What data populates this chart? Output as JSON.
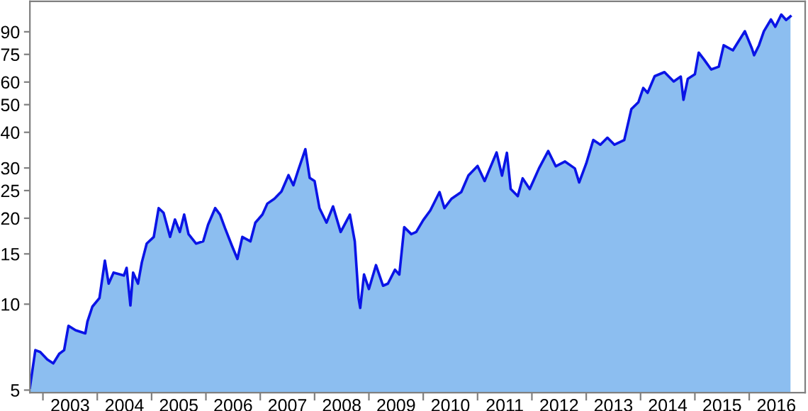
{
  "chart_data": {
    "type": "area",
    "log": "y",
    "grid": false,
    "legend": false,
    "xlim": [
      2002.76,
      2017.03
    ],
    "ylim": [
      4.9,
      115
    ],
    "xticks": [
      {
        "value": 2003,
        "label": null
      },
      {
        "value": 2003.5,
        "label": "2003"
      },
      {
        "value": 2004,
        "label": null
      },
      {
        "value": 2004.5,
        "label": "2004"
      },
      {
        "value": 2005,
        "label": null
      },
      {
        "value": 2005.5,
        "label": "2005"
      },
      {
        "value": 2006,
        "label": null
      },
      {
        "value": 2006.5,
        "label": "2006"
      },
      {
        "value": 2007,
        "label": null
      },
      {
        "value": 2007.5,
        "label": "2007"
      },
      {
        "value": 2008,
        "label": null
      },
      {
        "value": 2008.5,
        "label": "2008"
      },
      {
        "value": 2009,
        "label": null
      },
      {
        "value": 2009.5,
        "label": "2009"
      },
      {
        "value": 2010,
        "label": null
      },
      {
        "value": 2010.5,
        "label": "2010"
      },
      {
        "value": 2011,
        "label": null
      },
      {
        "value": 2011.5,
        "label": "2011"
      },
      {
        "value": 2012,
        "label": null
      },
      {
        "value": 2012.5,
        "label": "2012"
      },
      {
        "value": 2013,
        "label": null
      },
      {
        "value": 2013.5,
        "label": "2013"
      },
      {
        "value": 2014,
        "label": null
      },
      {
        "value": 2014.5,
        "label": "2014"
      },
      {
        "value": 2015,
        "label": null
      },
      {
        "value": 2015.5,
        "label": "2015"
      },
      {
        "value": 2016,
        "label": null
      },
      {
        "value": 2016.5,
        "label": "2016"
      }
    ],
    "yticks": [
      5,
      10,
      15,
      20,
      25,
      30,
      40,
      50,
      60,
      75,
      90
    ],
    "series": [
      {
        "color": "#8cbef0",
        "x": [
          2002.76,
          2002.86,
          2002.95,
          2003.08,
          2003.19,
          2003.3,
          2003.39,
          2003.47,
          2003.6,
          2003.78,
          2003.82,
          2003.91,
          2004.04,
          2004.14,
          2004.21,
          2004.3,
          2004.49,
          2004.54,
          2004.61,
          2004.66,
          2004.75,
          2004.82,
          2004.91,
          2005.04,
          2005.13,
          2005.22,
          2005.34,
          2005.43,
          2005.52,
          2005.6,
          2005.68,
          2005.82,
          2005.95,
          2006.04,
          2006.17,
          2006.26,
          2006.35,
          2006.48,
          2006.58,
          2006.67,
          2006.82,
          2006.91,
          2007.04,
          2007.13,
          2007.26,
          2007.39,
          2007.52,
          2007.61,
          2007.7,
          2007.83,
          2007.91,
          2008.0,
          2008.09,
          2008.22,
          2008.34,
          2008.48,
          2008.65,
          2008.74,
          2008.81,
          2008.84,
          2008.91,
          2009.0,
          2009.13,
          2009.26,
          2009.35,
          2009.48,
          2009.56,
          2009.65,
          2009.78,
          2009.87,
          2010.0,
          2010.13,
          2010.3,
          2010.39,
          2010.52,
          2010.7,
          2010.83,
          2011.0,
          2011.13,
          2011.35,
          2011.45,
          2011.54,
          2011.61,
          2011.74,
          2011.83,
          2011.96,
          2012.13,
          2012.3,
          2012.44,
          2012.61,
          2012.79,
          2012.87,
          2013.0,
          2013.13,
          2013.26,
          2013.39,
          2013.52,
          2013.7,
          2013.83,
          2013.96,
          2014.05,
          2014.13,
          2014.26,
          2014.44,
          2014.61,
          2014.74,
          2014.79,
          2014.87,
          2015.0,
          2015.07,
          2015.17,
          2015.3,
          2015.44,
          2015.53,
          2015.7,
          2015.92,
          2016.05,
          2016.09,
          2016.18,
          2016.27,
          2016.4,
          2016.48,
          2016.59,
          2016.68,
          2016.76
        ],
        "values": [
          5.1,
          6.9,
          6.8,
          6.4,
          6.2,
          6.7,
          6.9,
          8.4,
          8.1,
          7.9,
          8.7,
          9.8,
          10.5,
          14.2,
          11.8,
          12.9,
          12.6,
          13.4,
          9.9,
          12.9,
          11.8,
          14.0,
          16.3,
          17.2,
          21.7,
          20.9,
          17.2,
          19.8,
          17.9,
          20.6,
          17.6,
          16.3,
          16.6,
          19.0,
          21.7,
          20.6,
          18.5,
          16.0,
          14.4,
          17.2,
          16.6,
          19.3,
          20.6,
          22.5,
          23.4,
          24.8,
          28.3,
          26.1,
          29.5,
          34.9,
          27.7,
          27.0,
          21.7,
          19.3,
          22.0,
          17.9,
          20.6,
          16.6,
          10.5,
          9.7,
          12.7,
          11.3,
          13.7,
          11.6,
          11.8,
          13.2,
          12.7,
          18.6,
          17.6,
          17.9,
          19.7,
          21.3,
          24.7,
          21.7,
          23.4,
          24.7,
          28.2,
          30.5,
          27.0,
          34.0,
          28.2,
          33.9,
          25.3,
          23.9,
          27.6,
          25.3,
          29.9,
          34.4,
          30.4,
          31.6,
          29.9,
          26.7,
          31.1,
          37.6,
          36.2,
          38.3,
          36.2,
          37.6,
          48.2,
          51.0,
          57.2,
          55.0,
          62.9,
          65.0,
          60.3,
          62.7,
          52.0,
          61.6,
          63.9,
          76.1,
          71.9,
          66.4,
          67.9,
          80.7,
          77.5,
          90.4,
          78.6,
          74.5,
          80.7,
          90.4,
          99.4,
          93.7,
          103.4,
          99.0,
          102.0
        ]
      }
    ]
  }
}
